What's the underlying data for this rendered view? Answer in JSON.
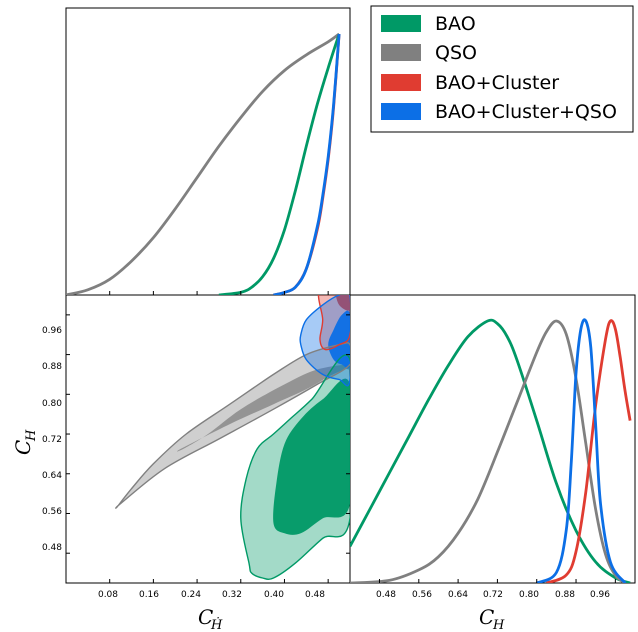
{
  "chart_data": {
    "type": "corner-plot",
    "series": [
      {
        "name": "BAO",
        "color": "#009966"
      },
      {
        "name": "QSO",
        "color": "#808080"
      },
      {
        "name": "BAO+Cluster",
        "color": "#e03c31"
      },
      {
        "name": "BAO+Cluster+QSO",
        "color": "#0c6fe6"
      }
    ],
    "xlabel_bottom_left": "C_Ḣ",
    "ylabel_bottom_left": "C_H",
    "xlabel_bottom_right": "C_H",
    "x_ticks_left": [
      "0.08",
      "0.16",
      "0.24",
      "0.32",
      "0.40",
      "0.48"
    ],
    "y_ticks_left": [
      "0.96",
      "0.88",
      "0.80",
      "0.72",
      "0.64",
      "0.56",
      "0.48"
    ],
    "x_ticks_right": [
      "0.48",
      "0.56",
      "0.64",
      "0.72",
      "0.80",
      "0.88",
      "0.96"
    ],
    "xlim_left": [
      0.0,
      0.52
    ],
    "ylim_left": [
      0.42,
      1.0
    ],
    "xlim_right": [
      0.42,
      1.0
    ],
    "marginal_C_Hdot": [
      {
        "series": "QSO",
        "x": [
          0.0,
          0.04,
          0.08,
          0.12,
          0.16,
          0.2,
          0.24,
          0.28,
          0.32,
          0.36,
          0.4,
          0.44,
          0.48,
          0.5
        ],
        "y": [
          0.0,
          0.02,
          0.06,
          0.13,
          0.22,
          0.33,
          0.45,
          0.57,
          0.68,
          0.78,
          0.86,
          0.92,
          0.97,
          1.0
        ]
      },
      {
        "series": "BAO",
        "x": [
          0.28,
          0.32,
          0.34,
          0.36,
          0.38,
          0.4,
          0.42,
          0.44,
          0.46,
          0.48,
          0.5
        ],
        "y": [
          0.0,
          0.01,
          0.03,
          0.07,
          0.14,
          0.25,
          0.4,
          0.57,
          0.73,
          0.87,
          1.0
        ]
      },
      {
        "series": "BAO+Cluster",
        "x": [
          0.38,
          0.4,
          0.42,
          0.44,
          0.46,
          0.47,
          0.48,
          0.49,
          0.5
        ],
        "y": [
          0.0,
          0.01,
          0.03,
          0.1,
          0.25,
          0.37,
          0.52,
          0.72,
          1.0
        ]
      },
      {
        "series": "BAO+Cluster+QSO",
        "x": [
          0.38,
          0.4,
          0.42,
          0.44,
          0.46,
          0.47,
          0.48,
          0.49,
          0.5
        ],
        "y": [
          0.0,
          0.01,
          0.03,
          0.1,
          0.26,
          0.38,
          0.53,
          0.73,
          1.0
        ]
      }
    ],
    "marginal_C_H": [
      {
        "series": "BAO",
        "x": [
          0.42,
          0.46,
          0.5,
          0.54,
          0.58,
          0.62,
          0.66,
          0.7,
          0.72,
          0.74,
          0.76,
          0.8,
          0.84,
          0.88,
          0.92,
          0.96,
          0.99
        ],
        "y": [
          0.14,
          0.28,
          0.42,
          0.56,
          0.7,
          0.83,
          0.94,
          1.0,
          0.99,
          0.94,
          0.85,
          0.62,
          0.38,
          0.2,
          0.08,
          0.02,
          0.0
        ]
      },
      {
        "series": "QSO",
        "x": [
          0.42,
          0.5,
          0.56,
          0.6,
          0.64,
          0.68,
          0.72,
          0.76,
          0.8,
          0.82,
          0.84,
          0.86,
          0.88,
          0.9,
          0.92,
          0.94,
          0.96,
          0.98
        ],
        "y": [
          0.0,
          0.01,
          0.05,
          0.1,
          0.19,
          0.32,
          0.5,
          0.69,
          0.88,
          0.96,
          1.0,
          0.95,
          0.78,
          0.53,
          0.28,
          0.11,
          0.03,
          0.0
        ]
      },
      {
        "series": "BAO+Cluster",
        "x": [
          0.82,
          0.86,
          0.88,
          0.9,
          0.92,
          0.94,
          0.95,
          0.96,
          0.97,
          0.98,
          0.99
        ],
        "y": [
          0.0,
          0.03,
          0.12,
          0.35,
          0.68,
          0.93,
          1.0,
          0.97,
          0.86,
          0.73,
          0.62
        ]
      },
      {
        "series": "BAO+Cluster+QSO",
        "x": [
          0.8,
          0.84,
          0.86,
          0.87,
          0.88,
          0.89,
          0.9,
          0.91,
          0.92,
          0.93,
          0.95,
          0.98
        ],
        "y": [
          0.0,
          0.04,
          0.2,
          0.45,
          0.8,
          0.97,
          1.0,
          0.9,
          0.6,
          0.3,
          0.08,
          0.0
        ]
      }
    ],
    "contours_2d": [
      {
        "series": "QSO",
        "level": "outer",
        "x": [
          0.1,
          0.18,
          0.28,
          0.38,
          0.46,
          0.52,
          0.52,
          0.5,
          0.44,
          0.38,
          0.3,
          0.22,
          0.16,
          0.12,
          0.095,
          0.1
        ],
        "y": [
          0.58,
          0.65,
          0.71,
          0.77,
          0.82,
          0.86,
          0.9,
          0.9,
          0.88,
          0.84,
          0.78,
          0.72,
          0.66,
          0.61,
          0.575,
          0.58
        ]
      },
      {
        "series": "QSO",
        "level": "inner",
        "x": [
          0.21,
          0.3,
          0.38,
          0.44,
          0.48,
          0.51,
          0.52,
          0.52,
          0.46,
          0.4,
          0.32,
          0.26,
          0.215,
          0.21
        ],
        "y": [
          0.69,
          0.74,
          0.78,
          0.81,
          0.835,
          0.85,
          0.85,
          0.86,
          0.85,
          0.82,
          0.77,
          0.72,
          0.69,
          0.69
        ]
      },
      {
        "series": "BAO",
        "level": "outer",
        "x": [
          0.34,
          0.36,
          0.38,
          0.42,
          0.47,
          0.52,
          0.52,
          0.45,
          0.41,
          0.38,
          0.35,
          0.33,
          0.32,
          0.335,
          0.34
        ],
        "y": [
          0.44,
          0.43,
          0.43,
          0.46,
          0.51,
          0.55,
          0.87,
          0.79,
          0.75,
          0.72,
          0.69,
          0.63,
          0.55,
          0.46,
          0.44
        ]
      },
      {
        "series": "BAO",
        "level": "inner",
        "x": [
          0.38,
          0.4,
          0.43,
          0.47,
          0.52,
          0.52,
          0.47,
          0.43,
          0.4,
          0.385,
          0.38
        ],
        "y": [
          0.54,
          0.52,
          0.52,
          0.55,
          0.58,
          0.82,
          0.79,
          0.75,
          0.7,
          0.62,
          0.54
        ]
      },
      {
        "series": "BAO+Cluster",
        "level": "outer",
        "x": [
          0.465,
          0.47,
          0.465,
          0.475,
          0.5,
          0.52,
          0.52,
          0.465
        ],
        "y": [
          1.01,
          0.95,
          0.91,
          0.89,
          0.9,
          0.92,
          1.01,
          1.01
        ]
      },
      {
        "series": "BAO+Cluster",
        "level": "inner",
        "x": [
          0.495,
          0.5,
          0.52,
          0.52,
          0.495
        ],
        "y": [
          1.01,
          0.98,
          0.97,
          1.01,
          1.01
        ]
      },
      {
        "series": "BAO+Cluster+QSO",
        "level": "outer",
        "x": [
          0.43,
          0.44,
          0.47,
          0.5,
          0.52,
          0.52,
          0.5,
          0.47,
          0.44,
          0.43,
          0.43
        ],
        "y": [
          0.9,
          0.87,
          0.84,
          0.83,
          0.83,
          1.0,
          1.0,
          0.98,
          0.95,
          0.92,
          0.9
        ]
      },
      {
        "series": "BAO+Cluster+QSO",
        "level": "inner",
        "x": [
          0.48,
          0.49,
          0.505,
          0.52,
          0.52,
          0.505,
          0.49,
          0.48
        ],
        "y": [
          0.9,
          0.87,
          0.86,
          0.86,
          0.96,
          0.96,
          0.93,
          0.9
        ]
      }
    ]
  }
}
